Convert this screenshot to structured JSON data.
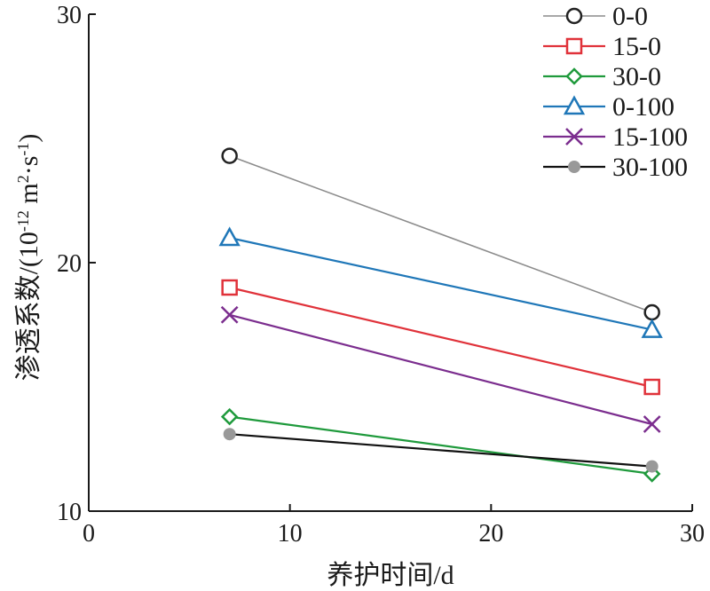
{
  "chart_data": {
    "type": "line",
    "xlabel": "养护时间/d",
    "ylabel": "渗透系数/(10-12 m2·s-1)",
    "ylabel_parts": {
      "pre": "渗透系数/(10",
      "exp1": "-12",
      "mid": " m",
      "exp2": "2",
      "mid2": "·s",
      "exp3": "-1",
      "post": ")"
    },
    "xlim": [
      0,
      30
    ],
    "ylim": [
      10,
      30
    ],
    "xticks": [
      0,
      10,
      20,
      30
    ],
    "yticks": [
      10,
      20,
      30
    ],
    "grid": false,
    "legend_position": "top-right",
    "series": [
      {
        "name": "0-0",
        "color": "#8c8c8c",
        "marker": "circle",
        "x": [
          7,
          28
        ],
        "y": [
          24.3,
          18.0
        ]
      },
      {
        "name": "15-0",
        "color": "#e0323a",
        "marker": "square",
        "x": [
          7,
          28
        ],
        "y": [
          19.0,
          15.0
        ]
      },
      {
        "name": "30-0",
        "color": "#1f9a3c",
        "marker": "diamond",
        "x": [
          7,
          28
        ],
        "y": [
          13.8,
          11.5
        ]
      },
      {
        "name": "0-100",
        "color": "#1f77b8",
        "marker": "triangle",
        "x": [
          7,
          28
        ],
        "y": [
          21.0,
          17.3
        ]
      },
      {
        "name": "15-100",
        "color": "#7b2d8e",
        "marker": "cross",
        "x": [
          7,
          28
        ],
        "y": [
          17.9,
          13.5
        ]
      },
      {
        "name": "30-100",
        "color": "#111111",
        "marker": "dot",
        "x": [
          7,
          28
        ],
        "y": [
          13.1,
          11.8
        ]
      }
    ]
  }
}
